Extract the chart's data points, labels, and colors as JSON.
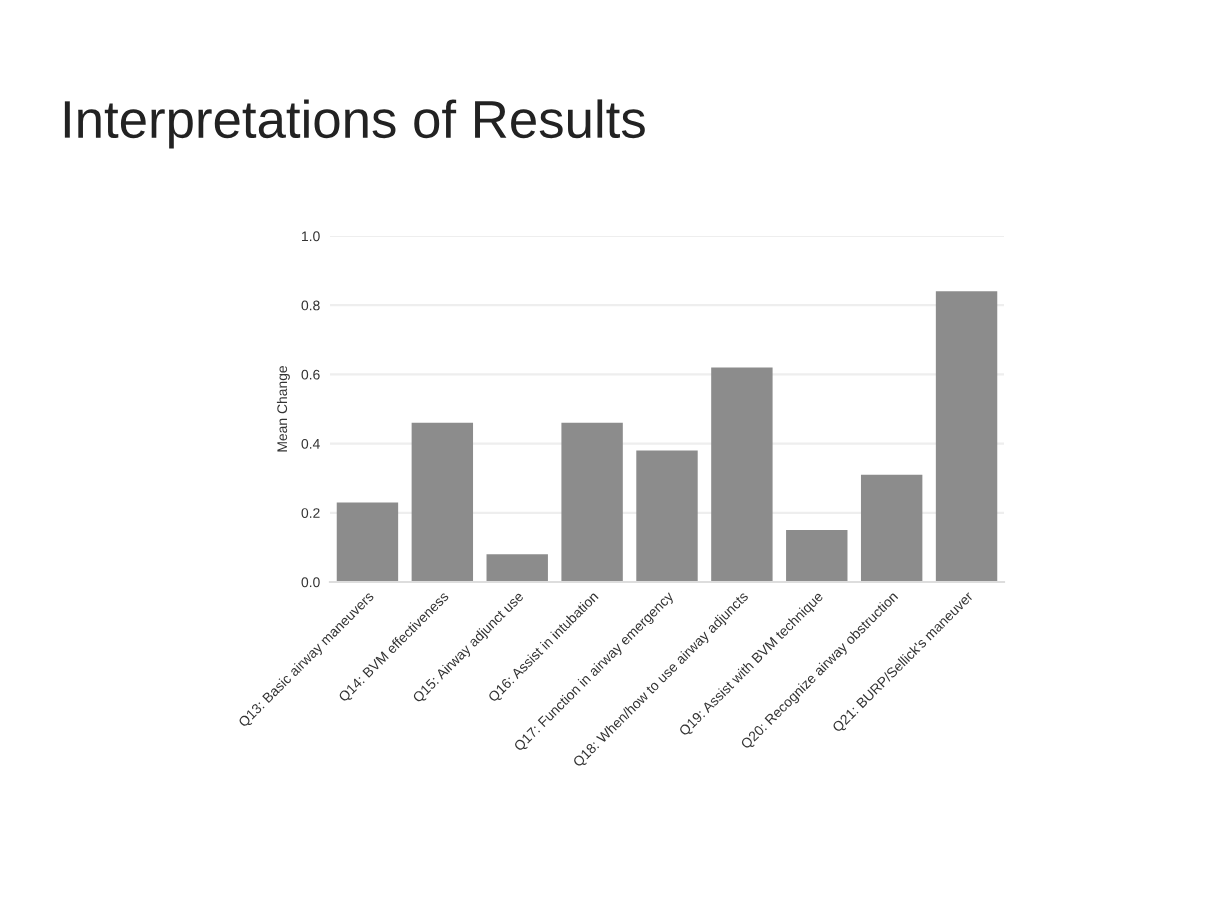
{
  "chart_data": {
    "type": "bar",
    "title": "Interpretations of Results",
    "ylabel": "Mean Change",
    "categories": [
      "Q13: Basic airway maneuvers",
      "Q14: BVM effectiveness",
      "Q15: Airway adjunct use",
      "Q16: Assist in intubation",
      "Q17: Function in airway emergency",
      "Q18: When/how to use airway adjuncts",
      "Q19: Assist with BVM technique",
      "Q20: Recognize airway obstruction",
      "Q21: BURP/Sellick's maneuver"
    ],
    "values": [
      0.23,
      0.46,
      0.08,
      0.46,
      0.38,
      0.62,
      0.15,
      0.31,
      0.84
    ],
    "color": "#8c8c8c",
    "ylim": [
      0,
      1.0
    ],
    "yticks": [
      {
        "value": 0,
        "label": "0.0"
      },
      {
        "value": 0.2,
        "label": "0.2"
      },
      {
        "value": 0.4,
        "label": "0.4"
      },
      {
        "value": 0.6,
        "label": "0.6"
      },
      {
        "value": 0.8,
        "label": "0.8"
      },
      {
        "value": 1.0,
        "label": "1.0"
      }
    ],
    "grid": "y"
  }
}
